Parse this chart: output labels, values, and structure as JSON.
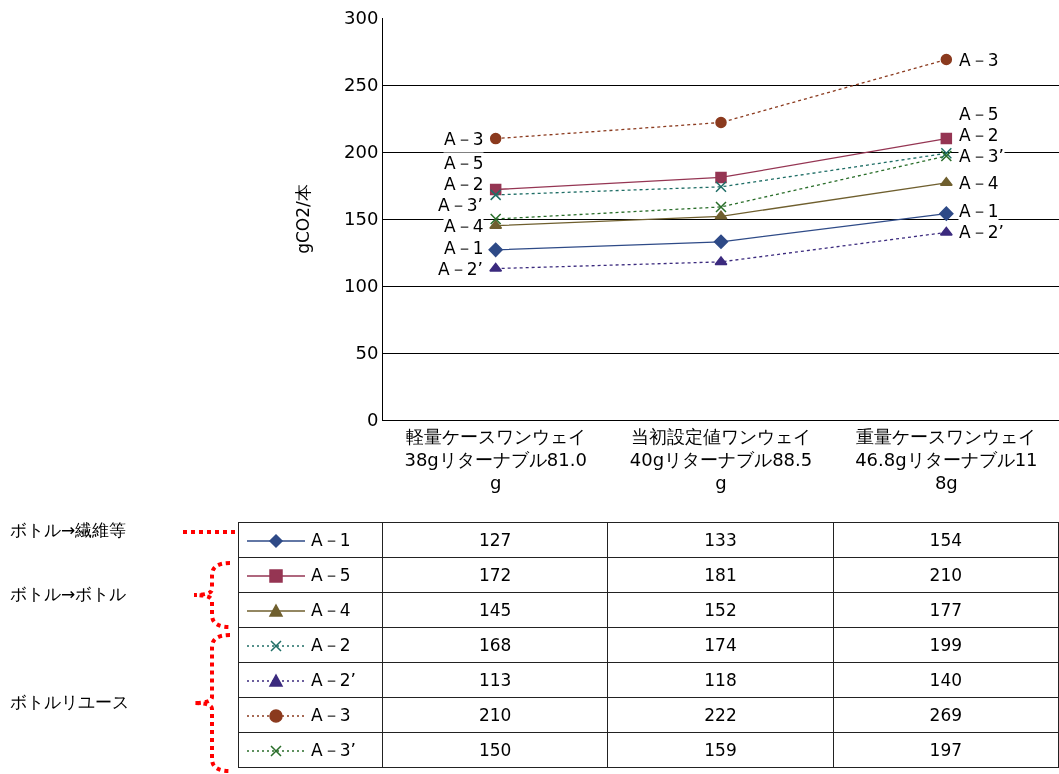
{
  "chart_data": {
    "type": "line",
    "ylabel": "gCO2/本",
    "categories": [
      "軽量ケースワンウェイ38gリターナブル81.0g",
      "当初設定値ワンウェイ40gリターナブル88.5g",
      "重量ケースワンウェイ46.8gリターナブル118g"
    ],
    "series": [
      {
        "name": "A－1",
        "color": "#2e4a87",
        "marker": "diamond",
        "line_style": "solid",
        "values": [
          127,
          133,
          154
        ]
      },
      {
        "name": "A－5",
        "color": "#953553",
        "marker": "square",
        "line_style": "solid",
        "values": [
          172,
          181,
          210
        ]
      },
      {
        "name": "A－4",
        "color": "#6f5f2e",
        "marker": "triangle",
        "line_style": "solid",
        "values": [
          145,
          152,
          177
        ]
      },
      {
        "name": "A－2",
        "color": "#1f6e66",
        "marker": "cross",
        "line_style": "dotted",
        "values": [
          168,
          174,
          199
        ]
      },
      {
        "name": "A－2’",
        "color": "#3b2a7e",
        "marker": "triangle",
        "line_style": "dotted",
        "values": [
          113,
          118,
          140
        ]
      },
      {
        "name": "A－3",
        "color": "#8b3a1e",
        "marker": "circle",
        "line_style": "dotted",
        "values": [
          210,
          222,
          269
        ]
      },
      {
        "name": "A－3’",
        "color": "#2a6e2a",
        "marker": "cross",
        "line_style": "dotted",
        "values": [
          150,
          159,
          197
        ]
      }
    ],
    "ylim": [
      0,
      300
    ],
    "yticks": [
      0,
      50,
      100,
      150,
      200,
      250,
      300
    ],
    "grid": "y",
    "legend": "bottom",
    "data_labels": true,
    "annotations": [
      "ボトル→繊維等",
      "ボトル→ボトル",
      "ボトルリユース"
    ]
  }
}
